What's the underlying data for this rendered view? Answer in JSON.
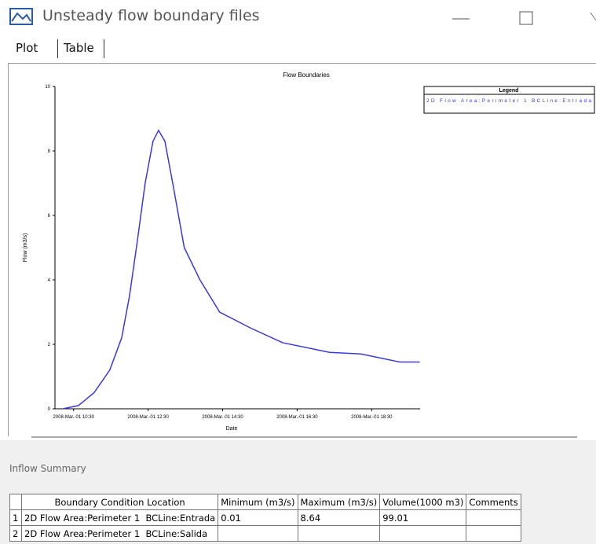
{
  "window": {
    "title": "Unsteady flow boundary files"
  },
  "tabs": [
    "Plot",
    "Table"
  ],
  "chart_data": {
    "type": "line",
    "title": "Flow Boundaries",
    "x_label": "Date",
    "y_label": "Flow (m3/s)",
    "legend_title": "Legend",
    "x": [
      10.21,
      10.63,
      11.05,
      11.47,
      11.79,
      12.0,
      12.21,
      12.42,
      12.63,
      12.78,
      12.95,
      13.16,
      13.47,
      13.89,
      14.42,
      15.26,
      16.11,
      17.37,
      18.21,
      19.26,
      19.79
    ],
    "series": [
      {
        "name": "2D Flow Area:Perimeter 1  BCLine:Entrada",
        "color": "#3a3ad6",
        "values": [
          0.0,
          0.1,
          0.5,
          1.2,
          2.2,
          3.5,
          5.2,
          7.0,
          8.3,
          8.64,
          8.3,
          7.0,
          5.0,
          4.0,
          3.0,
          2.5,
          2.05,
          1.75,
          1.7,
          1.45,
          1.45
        ]
      }
    ],
    "xlim": [
      10,
      19.8
    ],
    "xticks": [
      {
        "value": 10.5,
        "label": "2008-Mar.-01 10:30"
      },
      {
        "value": 12.5,
        "label": "2008-Mar.-01 12:30"
      },
      {
        "value": 14.5,
        "label": "2008-Mar.-01 14:30"
      },
      {
        "value": 16.5,
        "label": "2008-Mar.-01 16:30"
      },
      {
        "value": 18.5,
        "label": "2008-Mar.-01 18:30"
      }
    ],
    "ylim": [
      0,
      10
    ],
    "yticks": [
      0,
      2,
      4,
      6,
      8,
      10
    ]
  },
  "summary": {
    "title": "Inflow Summary",
    "headers": [
      "Boundary Condition Location",
      "Minimum (m3/s)",
      "Maximum (m3/s)",
      "Volume(1000 m3)",
      "Comments"
    ],
    "rows": [
      {
        "num": "1",
        "location": "2D Flow Area:Perimeter 1  BCLine:Entrada",
        "minimum": 0.01,
        "maximum": 8.64,
        "volume": 99.01
      },
      {
        "num": "2",
        "location": "2D Flow Area:Perimeter 1  BCLine:Salida"
      }
    ]
  }
}
